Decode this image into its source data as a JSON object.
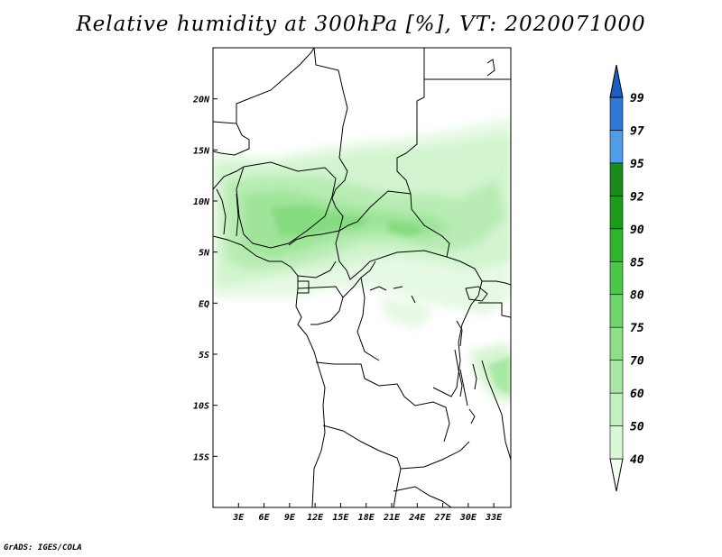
{
  "title": "Relative humidity at 300hPa [%], VT: 2020071000",
  "credit": "GrADS: IGES/COLA",
  "map": {
    "variable": "Relative humidity",
    "level": "300hPa",
    "units": "%",
    "valid_time": "2020071000",
    "lon_range": [
      0,
      35
    ],
    "lat_range": [
      -20,
      25
    ],
    "lon_ticks": [
      "3E",
      "6E",
      "9E",
      "12E",
      "15E",
      "18E",
      "21E",
      "24E",
      "27E",
      "30E",
      "33E"
    ],
    "lat_ticks": [
      "20N",
      "15N",
      "10N",
      "5N",
      "EQ",
      "5S",
      "10S",
      "15S"
    ]
  },
  "colorbar": {
    "levels": [
      "40",
      "50",
      "60",
      "70",
      "75",
      "80",
      "85",
      "90",
      "92",
      "95",
      "97",
      "99"
    ],
    "colors": [
      "#f0fff0",
      "#daf8d8",
      "#c2f0bf",
      "#a8e8a4",
      "#8de088",
      "#6fd66a",
      "#4cc848",
      "#2fb42c",
      "#1d9c1c",
      "#1a8a1a",
      "#4f9ce8",
      "#2f78d6",
      "#1c5fc0"
    ]
  }
}
